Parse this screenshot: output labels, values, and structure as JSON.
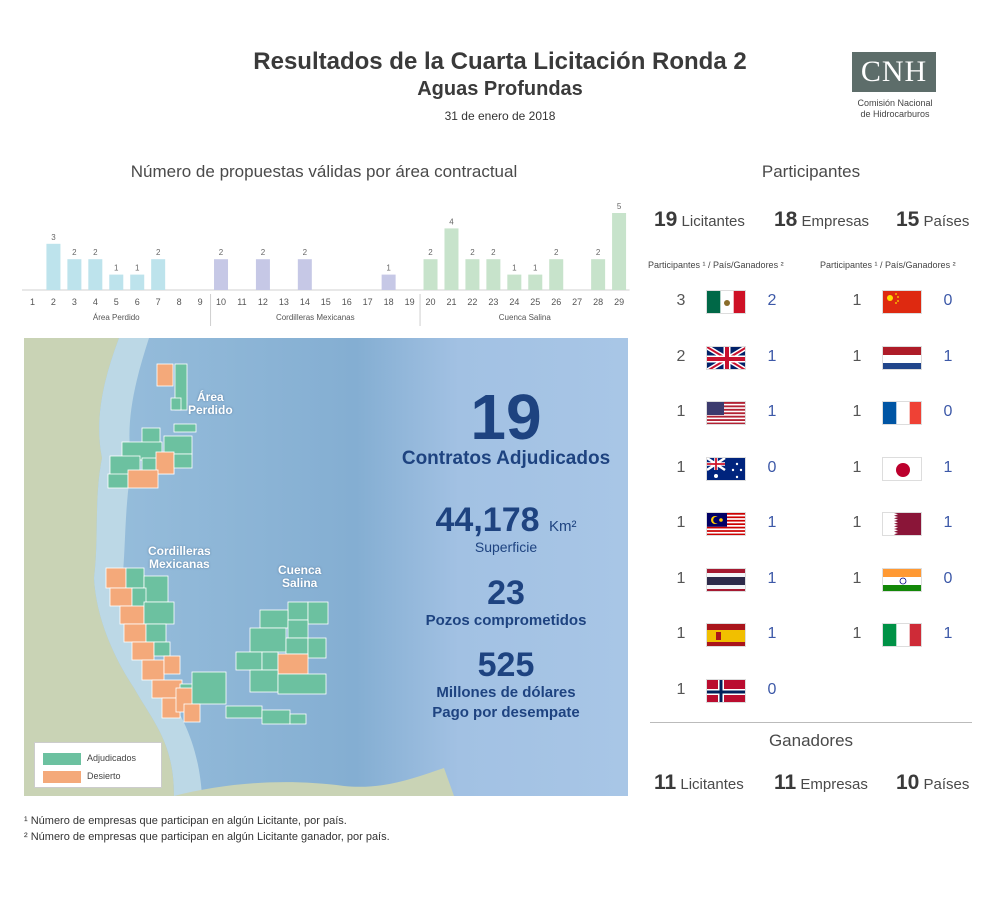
{
  "header": {
    "title": "Resultados de la Cuarta Licitación Ronda 2",
    "subtitle": "Aguas Profundas",
    "date": "31 de enero de 2018",
    "logo_text": "CNH",
    "logo_caption_1": "Comisión Nacional",
    "logo_caption_2": "de Hidrocarburos",
    "logo_color": "#5d6d6a"
  },
  "chart_data": {
    "type": "bar",
    "title": "Número de propuestas válidas por área contractual",
    "categories": [
      "1",
      "2",
      "3",
      "4",
      "5",
      "6",
      "7",
      "8",
      "9",
      "10",
      "11",
      "12",
      "13",
      "14",
      "15",
      "16",
      "17",
      "18",
      "19",
      "20",
      "21",
      "22",
      "23",
      "24",
      "25",
      "26",
      "27",
      "28",
      "29"
    ],
    "values": [
      0,
      3,
      2,
      2,
      1,
      1,
      2,
      0,
      0,
      2,
      0,
      2,
      0,
      2,
      0,
      0,
      0,
      1,
      0,
      2,
      4,
      2,
      2,
      1,
      1,
      2,
      0,
      2,
      5
    ],
    "groups": [
      {
        "name": "Área Perdido",
        "from": 1,
        "to": 9,
        "color": "#bde3ec"
      },
      {
        "name": "Cordilleras Mexicanas",
        "from": 10,
        "to": 19,
        "color": "#c6c8e6"
      },
      {
        "name": "Cuenca Salina",
        "from": 20,
        "to": 29,
        "color": "#c7e3cb"
      }
    ],
    "ylim": [
      0,
      5
    ]
  },
  "map": {
    "region_perdido": [
      "Área",
      "Perdido"
    ],
    "region_cordilleras": [
      "Cordilleras",
      "Mexicanas"
    ],
    "region_salina": [
      "Cuenca",
      "Salina"
    ],
    "legend": [
      {
        "label": "Adjudicados",
        "color": "#6cc1a0"
      },
      {
        "label": "Desierto",
        "color": "#f4a97a"
      }
    ],
    "stats": {
      "contracts_value": "19",
      "contracts_label": "Contratos Adjudicados",
      "area_value": "44,178",
      "area_unit": "Km²",
      "area_label": "Superficie",
      "wells_value": "23",
      "wells_label": "Pozos comprometidos",
      "payment_value": "525",
      "payment_label_1": "Millones de dólares",
      "payment_label_2": "Pago por desempate"
    }
  },
  "participants": {
    "title": "Participantes",
    "licitantes": "19",
    "licitantes_label": "Licitantes",
    "empresas": "18",
    "empresas_label": "Empresas",
    "paises": "15",
    "paises_label": "Países",
    "col_header": "Participantes ¹ / País/Ganadores ²",
    "left": [
      {
        "participants": "3",
        "flag": "mexico-flag",
        "winners": "2"
      },
      {
        "participants": "2",
        "flag": "uk-flag",
        "winners": "1"
      },
      {
        "participants": "1",
        "flag": "usa-flag",
        "winners": "1"
      },
      {
        "participants": "1",
        "flag": "australia-flag",
        "winners": "0"
      },
      {
        "participants": "1",
        "flag": "malaysia-flag",
        "winners": "1"
      },
      {
        "participants": "1",
        "flag": "thailand-flag",
        "winners": "1"
      },
      {
        "participants": "1",
        "flag": "spain-flag",
        "winners": "1"
      },
      {
        "participants": "1",
        "flag": "norway-flag",
        "winners": "0"
      }
    ],
    "right": [
      {
        "participants": "1",
        "flag": "china-flag",
        "winners": "0"
      },
      {
        "participants": "1",
        "flag": "netherlands-flag",
        "winners": "1"
      },
      {
        "participants": "1",
        "flag": "france-flag",
        "winners": "0"
      },
      {
        "participants": "1",
        "flag": "japan-flag",
        "winners": "1"
      },
      {
        "participants": "1",
        "flag": "qatar-flag",
        "winners": "1"
      },
      {
        "participants": "1",
        "flag": "india-flag",
        "winners": "0"
      },
      {
        "participants": "1",
        "flag": "italy-flag",
        "winners": "1"
      }
    ]
  },
  "winners": {
    "title": "Ganadores",
    "licitantes": "11",
    "licitantes_label": "Licitantes",
    "empresas": "11",
    "empresas_label": "Empresas",
    "paises": "10",
    "paises_label": "Países"
  },
  "footnotes": {
    "note1": "¹ Número de empresas que participan en algún Licitante, por país.",
    "note2": "² Número de empresas que participan en algún Licitante ganador, por país."
  }
}
